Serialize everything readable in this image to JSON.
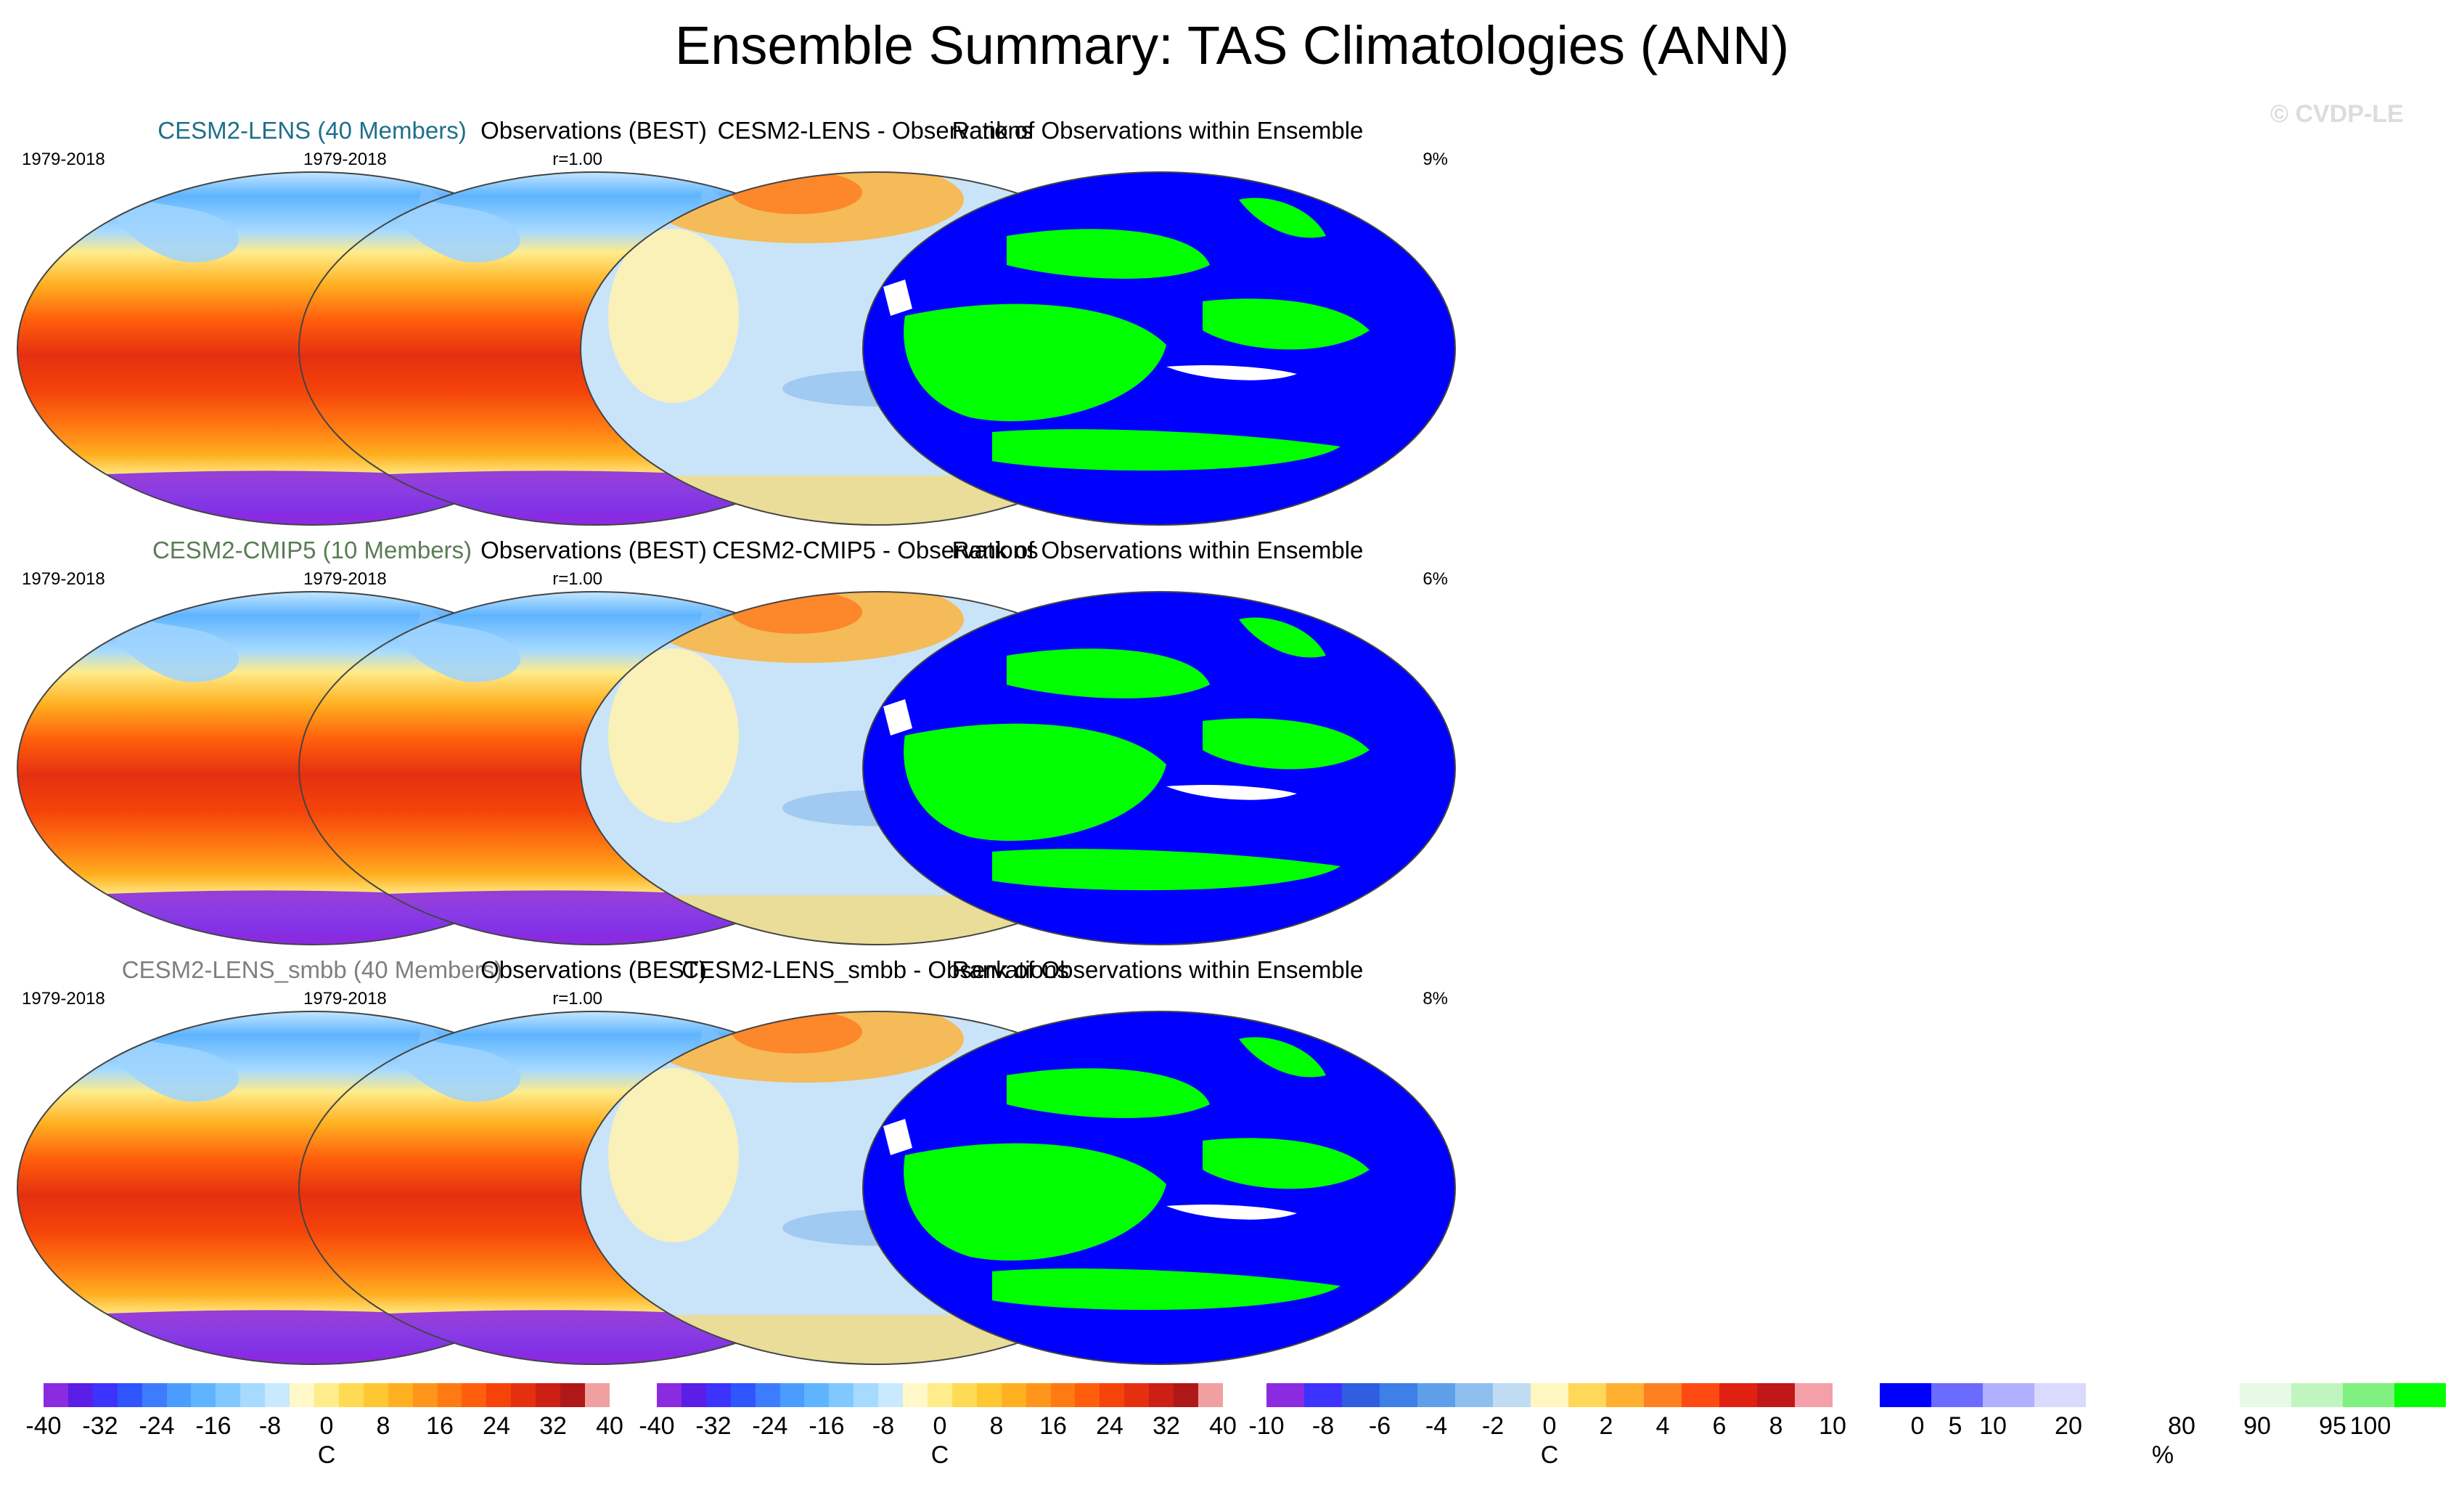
{
  "title": "Ensemble Summary: TAS Climatologies (ANN)",
  "watermark": "© CVDP-LE",
  "rows": [
    {
      "model": {
        "label": "CESM2-LENS (40 Members)",
        "color": "#1f6f8b",
        "period": "1979-2018",
        "corr": "r=1.00"
      },
      "obs": {
        "label": "Observations (BEST)",
        "period": "1979-2018"
      },
      "diff": {
        "label": "CESM2-LENS - Observations"
      },
      "rank": {
        "label": "Rank of Observations within Ensemble",
        "pct": "9%"
      }
    },
    {
      "model": {
        "label": "CESM2-CMIP5 (10 Members)",
        "color": "#5a7d55",
        "period": "1979-2018",
        "corr": "r=1.00"
      },
      "obs": {
        "label": "Observations (BEST)",
        "period": "1979-2018"
      },
      "diff": {
        "label": "CESM2-CMIP5 - Observations"
      },
      "rank": {
        "label": "Rank of Observations within Ensemble",
        "pct": "6%"
      }
    },
    {
      "model": {
        "label": "CESM2-LENS_smbb (40 Members)",
        "color": "#7f7f7f",
        "period": "1979-2018",
        "corr": "r=1.00"
      },
      "obs": {
        "label": "Observations (BEST)",
        "period": "1979-2018"
      },
      "diff": {
        "label": "CESM2-LENS_smbb - Observations"
      },
      "rank": {
        "label": "Rank of Observations within Ensemble",
        "pct": "8%"
      }
    }
  ],
  "colorbars": [
    {
      "ticks": [
        "-40",
        "-32",
        "-24",
        "-16",
        "-8",
        "0",
        "8",
        "16",
        "24",
        "32",
        "40"
      ],
      "unit": "C",
      "colors": [
        "#8a2be2",
        "#5a1ee6",
        "#3c33ff",
        "#2f55ff",
        "#3d7cff",
        "#4a9cff",
        "#5eb4ff",
        "#80c8ff",
        "#a6daff",
        "#c9e9ff",
        "#fff8c8",
        "#ffec8a",
        "#ffdb55",
        "#ffc833",
        "#ffb020",
        "#ff951a",
        "#ff7a12",
        "#ff5e0c",
        "#f5430a",
        "#e53010",
        "#cc2014",
        "#b01818",
        "#f0a0a0"
      ]
    },
    {
      "ticks": [
        "-40",
        "-32",
        "-24",
        "-16",
        "-8",
        "0",
        "8",
        "16",
        "24",
        "32",
        "40"
      ],
      "unit": "C",
      "colors": [
        "#8a2be2",
        "#5a1ee6",
        "#3c33ff",
        "#2f55ff",
        "#3d7cff",
        "#4a9cff",
        "#5eb4ff",
        "#80c8ff",
        "#a6daff",
        "#c9e9ff",
        "#fff8c8",
        "#ffec8a",
        "#ffdb55",
        "#ffc833",
        "#ffb020",
        "#ff951a",
        "#ff7a12",
        "#ff5e0c",
        "#f5430a",
        "#e53010",
        "#cc2014",
        "#b01818",
        "#f0a0a0"
      ]
    },
    {
      "ticks": [
        "-10",
        "-8",
        "-6",
        "-4",
        "-2",
        "0",
        "2",
        "4",
        "6",
        "8",
        "10"
      ],
      "unit": "C",
      "colors": [
        "#8a2be2",
        "#3c33ff",
        "#2f5fe0",
        "#3f7fe8",
        "#5f9fea",
        "#8fbfee",
        "#bfdcf2",
        "#fff6c0",
        "#ffd85a",
        "#ffb030",
        "#ff8020",
        "#ff4a14",
        "#e02010",
        "#c01818",
        "#f4a0a8"
      ]
    },
    {
      "ticks": [
        "0",
        "5",
        "10",
        "20",
        "80",
        "90",
        "95",
        "100"
      ],
      "unit": "%",
      "tickpos": [
        0.0667,
        0.1333,
        0.2,
        0.3333,
        0.5333,
        0.6667,
        0.8,
        0.8667
      ],
      "colors": [
        "#0000ff",
        "#6b6bff",
        "#b0b0ff",
        "#dadaff",
        "#ffffff",
        "#ffffff",
        "#ffffff",
        "#e6fae6",
        "#c0f5c0",
        "#80f080",
        "#00ff00"
      ]
    }
  ]
}
